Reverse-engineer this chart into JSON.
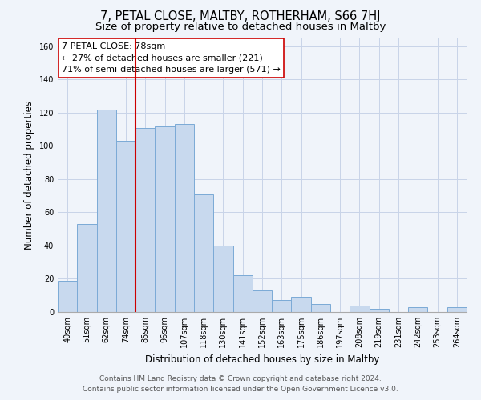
{
  "title": "7, PETAL CLOSE, MALTBY, ROTHERHAM, S66 7HJ",
  "subtitle": "Size of property relative to detached houses in Maltby",
  "xlabel": "Distribution of detached houses by size in Maltby",
  "ylabel": "Number of detached properties",
  "bar_labels": [
    "40sqm",
    "51sqm",
    "62sqm",
    "74sqm",
    "85sqm",
    "96sqm",
    "107sqm",
    "118sqm",
    "130sqm",
    "141sqm",
    "152sqm",
    "163sqm",
    "175sqm",
    "186sqm",
    "197sqm",
    "208sqm",
    "219sqm",
    "231sqm",
    "242sqm",
    "253sqm",
    "264sqm"
  ],
  "bar_values": [
    19,
    53,
    122,
    103,
    111,
    112,
    113,
    71,
    40,
    22,
    13,
    7,
    9,
    5,
    0,
    4,
    2,
    0,
    3,
    0,
    3
  ],
  "bar_color": "#c8d9ee",
  "bar_edge_color": "#7baad6",
  "vline_x": 3.5,
  "vline_color": "#cc0000",
  "annotation_text": "7 PETAL CLOSE: 78sqm\n← 27% of detached houses are smaller (221)\n71% of semi-detached houses are larger (571) →",
  "annotation_box_edge": "#cc0000",
  "annotation_box_face": "#ffffff",
  "ylim": [
    0,
    165
  ],
  "yticks": [
    0,
    20,
    40,
    60,
    80,
    100,
    120,
    140,
    160
  ],
  "footer_line1": "Contains HM Land Registry data © Crown copyright and database right 2024.",
  "footer_line2": "Contains public sector information licensed under the Open Government Licence v3.0.",
  "bg_color": "#f0f4fa",
  "grid_color": "#c8d4e8",
  "title_fontsize": 10.5,
  "subtitle_fontsize": 9.5,
  "axis_label_fontsize": 8.5,
  "tick_fontsize": 7,
  "annotation_fontsize": 8,
  "footer_fontsize": 6.5
}
